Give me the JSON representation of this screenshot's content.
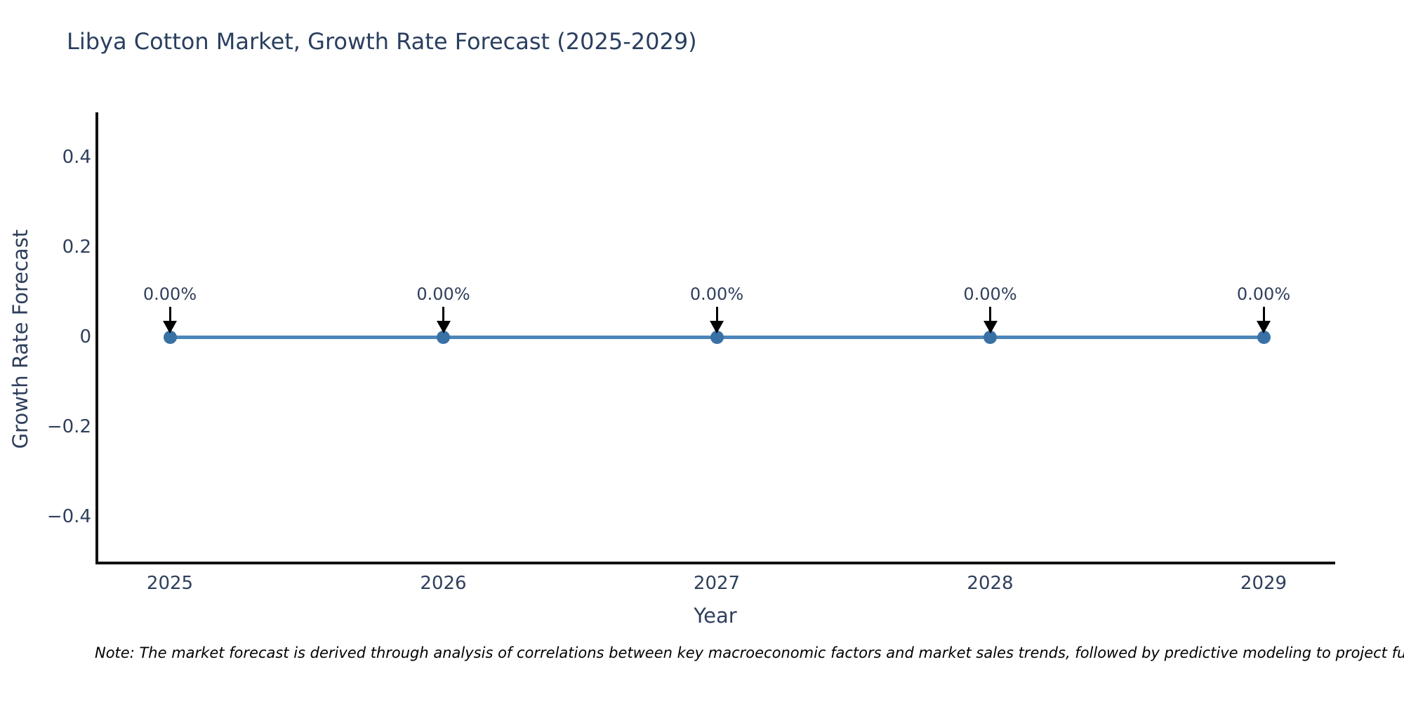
{
  "title": "Libya Cotton Market, Growth Rate Forecast (2025-2029)",
  "note": "Note: The market forecast is derived through analysis of correlations between key macroeconomic factors and market sales trends, followed by predictive modeling to project future sales",
  "chart_data": {
    "type": "line",
    "title": "Libya Cotton Market, Growth Rate Forecast (2025-2029)",
    "xlabel": "Year",
    "ylabel": "Growth Rate Forecast",
    "x": [
      "2025",
      "2026",
      "2027",
      "2028",
      "2029"
    ],
    "series": [
      {
        "name": "Growth Rate Forecast",
        "values": [
          0,
          0,
          0,
          0,
          0
        ]
      }
    ],
    "point_labels": [
      "0.00%",
      "0.00%",
      "0.00%",
      "0.00%",
      "0.00%"
    ],
    "ytick_values": [
      0.4,
      0.2,
      0,
      -0.2,
      -0.4
    ],
    "ytick_labels": [
      "0.4",
      "0.2",
      "0",
      "−0.2",
      "−0.4"
    ],
    "ylim": [
      -0.5,
      0.5
    ],
    "grid": false,
    "legend_position": "none",
    "marker_style": "circle",
    "annotation_arrows": "down",
    "colors": {
      "line": "#4d86ba",
      "marker": "#3a71a5",
      "axis": "#111111",
      "text": "#2f3f5c",
      "title_text": "#2a3f5f",
      "annotation_arrow": "#000000",
      "note_text": "#000000",
      "background": "#ffffff"
    }
  }
}
